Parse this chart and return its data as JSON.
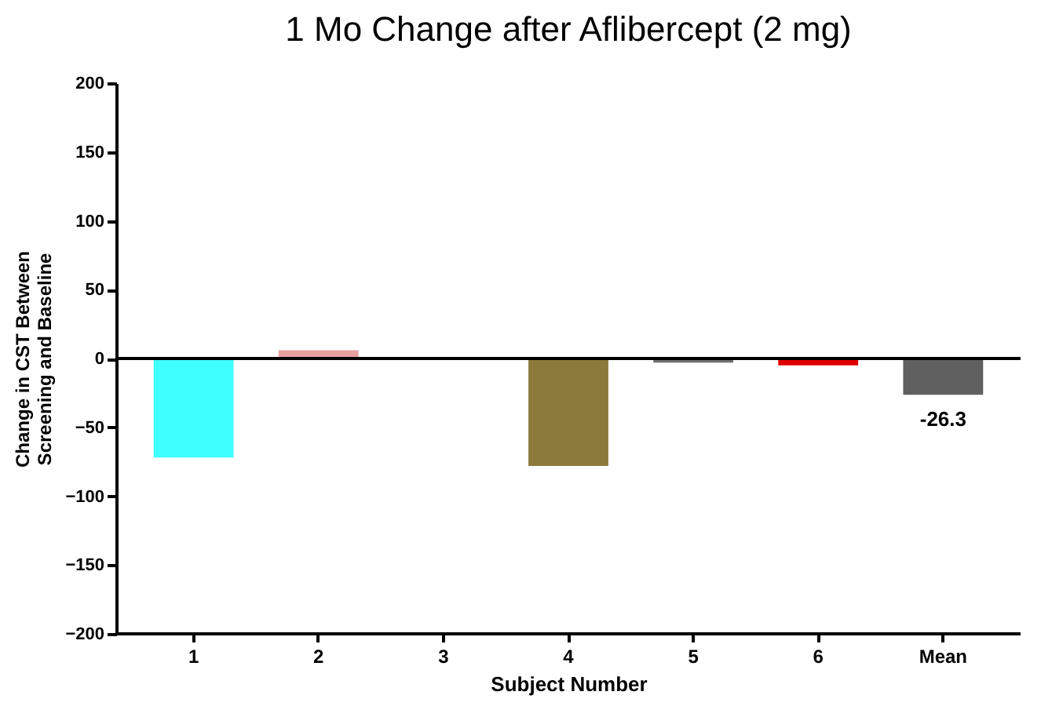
{
  "chart_data": {
    "type": "bar",
    "title": "1 Mo Change after Aflibercept (2 mg)",
    "xlabel": "Subject Number",
    "ylabel": "Change in CST Between Screening and Baseline",
    "categories": [
      "1",
      "2",
      "3",
      "4",
      "5",
      "6",
      "Mean"
    ],
    "values": [
      -72,
      6,
      -1,
      -78,
      -3,
      -5,
      -26.3
    ],
    "colors": [
      "#40ffff",
      "#e8a0a0",
      "#404040",
      "#8b7a3a",
      "#707070",
      "#e00000",
      "#606060"
    ],
    "value_labels": [
      null,
      null,
      null,
      null,
      null,
      null,
      "-26.3"
    ],
    "ylim": [
      -200,
      200
    ],
    "yticks": [
      -200,
      -150,
      -100,
      -50,
      0,
      50,
      100,
      150,
      200
    ],
    "ref_lines": [
      {
        "axis": "y",
        "value": 0,
        "label": null
      }
    ],
    "grid": false
  }
}
